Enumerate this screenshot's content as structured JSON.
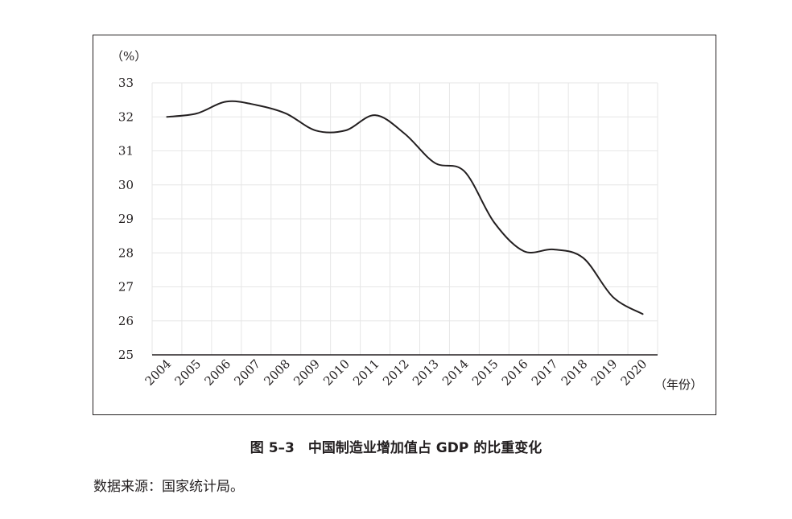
{
  "chart_data": {
    "type": "line",
    "y_unit": "（%）",
    "x_unit": "（年份）",
    "ylim": [
      25,
      33
    ],
    "yticks": [
      25,
      26,
      27,
      28,
      29,
      30,
      31,
      32,
      33
    ],
    "grid": true,
    "categories": [
      "2004",
      "2005",
      "2006",
      "2007",
      "2008",
      "2009",
      "2010",
      "2011",
      "2012",
      "2013",
      "2014",
      "2015",
      "2016",
      "2017",
      "2018",
      "2019",
      "2020"
    ],
    "series": [
      {
        "values": [
          32.0,
          32.1,
          32.45,
          32.35,
          32.1,
          31.6,
          31.6,
          32.05,
          31.5,
          30.65,
          30.4,
          28.9,
          28.05,
          28.1,
          27.85,
          26.7,
          26.2
        ]
      }
    ],
    "line_color": "#231f20",
    "grid_color": "#e6e6e6"
  },
  "caption": "图 5–3　中国制造业增加值占 GDP 的比重变化",
  "source": "数据来源：国家统计局。"
}
